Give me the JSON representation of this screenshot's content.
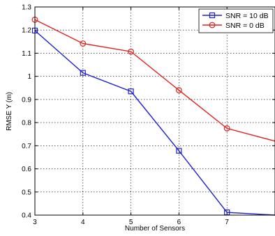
{
  "chart_data": {
    "type": "line",
    "title": "",
    "xlabel": "Number of Sensors",
    "ylabel": "RMSE Y (m)",
    "xlim": [
      3,
      8
    ],
    "ylim": [
      0.4,
      1.3
    ],
    "x_ticks": [
      "3",
      "4",
      "5",
      "6",
      "7"
    ],
    "y_ticks": [
      "0.4",
      "0.5",
      "0.6",
      "0.7",
      "0.8",
      "0.9",
      "1",
      "1.1",
      "1.2",
      "1.3"
    ],
    "grid": true,
    "legend_position": "top-right",
    "series": [
      {
        "name": "SNR = 10 dB",
        "color": "#1f1fcf",
        "marker": "square",
        "x": [
          3,
          4,
          5,
          6,
          7,
          8
        ],
        "y": [
          1.198,
          1.015,
          0.935,
          0.678,
          0.412,
          0.4
        ]
      },
      {
        "name": "SNR = 0 dB",
        "color": "#e21f1f",
        "marker": "circle",
        "x": [
          3,
          4,
          5,
          6,
          7,
          8
        ],
        "y": [
          1.245,
          1.142,
          1.107,
          0.94,
          0.775,
          0.72
        ]
      }
    ]
  }
}
